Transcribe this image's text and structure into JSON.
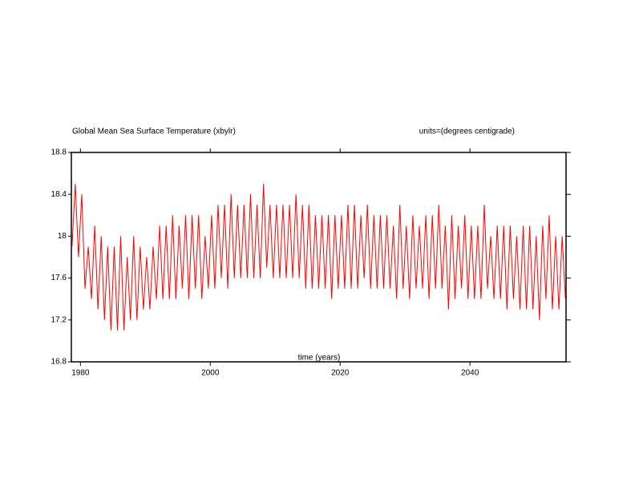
{
  "chart_data": {
    "type": "line",
    "title": "Global Mean Sea Surface Temperature (xbylr)",
    "subtitle": "units=(degrees centigrade)",
    "x_label": "time (years)",
    "color": "#ff0000",
    "xlim": [
      1978.6,
      2054.8
    ],
    "xticks": [
      1980,
      2000,
      2020,
      2040
    ],
    "ylim": [
      16.8,
      18.8
    ],
    "yticks": [
      16.8,
      17.2,
      17.6,
      18.0,
      18.4,
      18.8
    ],
    "x": [
      1978.7,
      1979.2,
      1979.7,
      1980.2,
      1980.7,
      1981.2,
      1981.7,
      1982.2,
      1982.7,
      1983.2,
      1983.7,
      1984.2,
      1984.7,
      1985.2,
      1985.7,
      1986.2,
      1986.7,
      1987.2,
      1987.7,
      1988.2,
      1988.7,
      1989.2,
      1989.7,
      1990.2,
      1990.7,
      1991.2,
      1991.7,
      1992.2,
      1992.7,
      1993.2,
      1993.7,
      1994.2,
      1994.7,
      1995.2,
      1995.7,
      1996.2,
      1996.7,
      1997.2,
      1997.7,
      1998.2,
      1998.7,
      1999.2,
      1999.7,
      2000.2,
      2000.7,
      2001.2,
      2001.7,
      2002.2,
      2002.7,
      2003.2,
      2003.7,
      2004.2,
      2004.7,
      2005.2,
      2005.7,
      2006.2,
      2006.7,
      2007.2,
      2007.7,
      2008.2,
      2008.7,
      2009.2,
      2009.7,
      2010.2,
      2010.7,
      2011.2,
      2011.7,
      2012.2,
      2012.7,
      2013.2,
      2013.7,
      2014.2,
      2014.7,
      2015.2,
      2015.7,
      2016.2,
      2016.7,
      2017.2,
      2017.7,
      2018.2,
      2018.7,
      2019.2,
      2019.7,
      2020.2,
      2020.7,
      2021.2,
      2021.7,
      2022.2,
      2022.7,
      2023.2,
      2023.7,
      2024.2,
      2024.7,
      2025.2,
      2025.7,
      2026.2,
      2026.7,
      2027.2,
      2027.7,
      2028.2,
      2028.7,
      2029.2,
      2029.7,
      2030.2,
      2030.7,
      2031.2,
      2031.7,
      2032.2,
      2032.7,
      2033.2,
      2033.7,
      2034.2,
      2034.7,
      2035.2,
      2035.7,
      2036.2,
      2036.7,
      2037.2,
      2037.7,
      2038.2,
      2038.7,
      2039.2,
      2039.7,
      2040.2,
      2040.7,
      2041.2,
      2041.7,
      2042.2,
      2042.7,
      2043.2,
      2043.7,
      2044.2,
      2044.7,
      2045.2,
      2045.7,
      2046.2,
      2046.7,
      2047.2,
      2047.7,
      2048.2,
      2048.7,
      2049.2,
      2049.7,
      2050.2,
      2050.7,
      2051.2,
      2051.7,
      2052.2,
      2052.7,
      2053.2,
      2053.7,
      2054.2,
      2054.7
    ],
    "values": [
      17.9,
      18.5,
      17.8,
      18.4,
      17.5,
      17.9,
      17.4,
      18.1,
      17.3,
      18.0,
      17.2,
      17.9,
      17.1,
      17.9,
      17.1,
      18.0,
      17.1,
      17.8,
      17.2,
      18.0,
      17.2,
      17.9,
      17.3,
      17.8,
      17.3,
      17.9,
      17.4,
      18.1,
      17.4,
      18.1,
      17.4,
      18.2,
      17.4,
      18.1,
      17.5,
      18.2,
      17.4,
      18.2,
      17.5,
      18.2,
      17.4,
      18.0,
      17.5,
      18.2,
      17.5,
      18.3,
      17.6,
      18.3,
      17.5,
      18.4,
      17.6,
      18.3,
      17.6,
      18.3,
      17.6,
      18.4,
      17.6,
      18.3,
      17.6,
      18.5,
      17.7,
      18.3,
      17.6,
      18.3,
      17.6,
      18.3,
      17.6,
      18.3,
      17.6,
      18.4,
      17.6,
      18.3,
      17.5,
      18.3,
      17.5,
      18.2,
      17.5,
      18.2,
      17.5,
      18.2,
      17.4,
      18.2,
      17.5,
      18.2,
      17.5,
      18.3,
      17.5,
      18.3,
      17.5,
      18.2,
      17.6,
      18.3,
      17.5,
      18.2,
      17.5,
      18.2,
      17.5,
      18.2,
      17.5,
      18.1,
      17.4,
      18.3,
      17.5,
      18.1,
      17.4,
      18.2,
      17.5,
      18.1,
      17.5,
      18.2,
      17.4,
      18.2,
      17.5,
      18.3,
      17.5,
      18.1,
      17.3,
      18.2,
      17.4,
      18.1,
      17.5,
      18.2,
      17.4,
      18.1,
      17.4,
      18.1,
      17.4,
      18.3,
      17.5,
      18.0,
      17.4,
      18.1,
      17.4,
      18.1,
      17.3,
      18.1,
      17.4,
      18.0,
      17.3,
      18.1,
      17.3,
      18.1,
      17.3,
      18.0,
      17.2,
      18.1,
      17.4,
      18.2,
      17.3,
      18.0,
      17.3,
      18.0,
      17.4
    ]
  }
}
